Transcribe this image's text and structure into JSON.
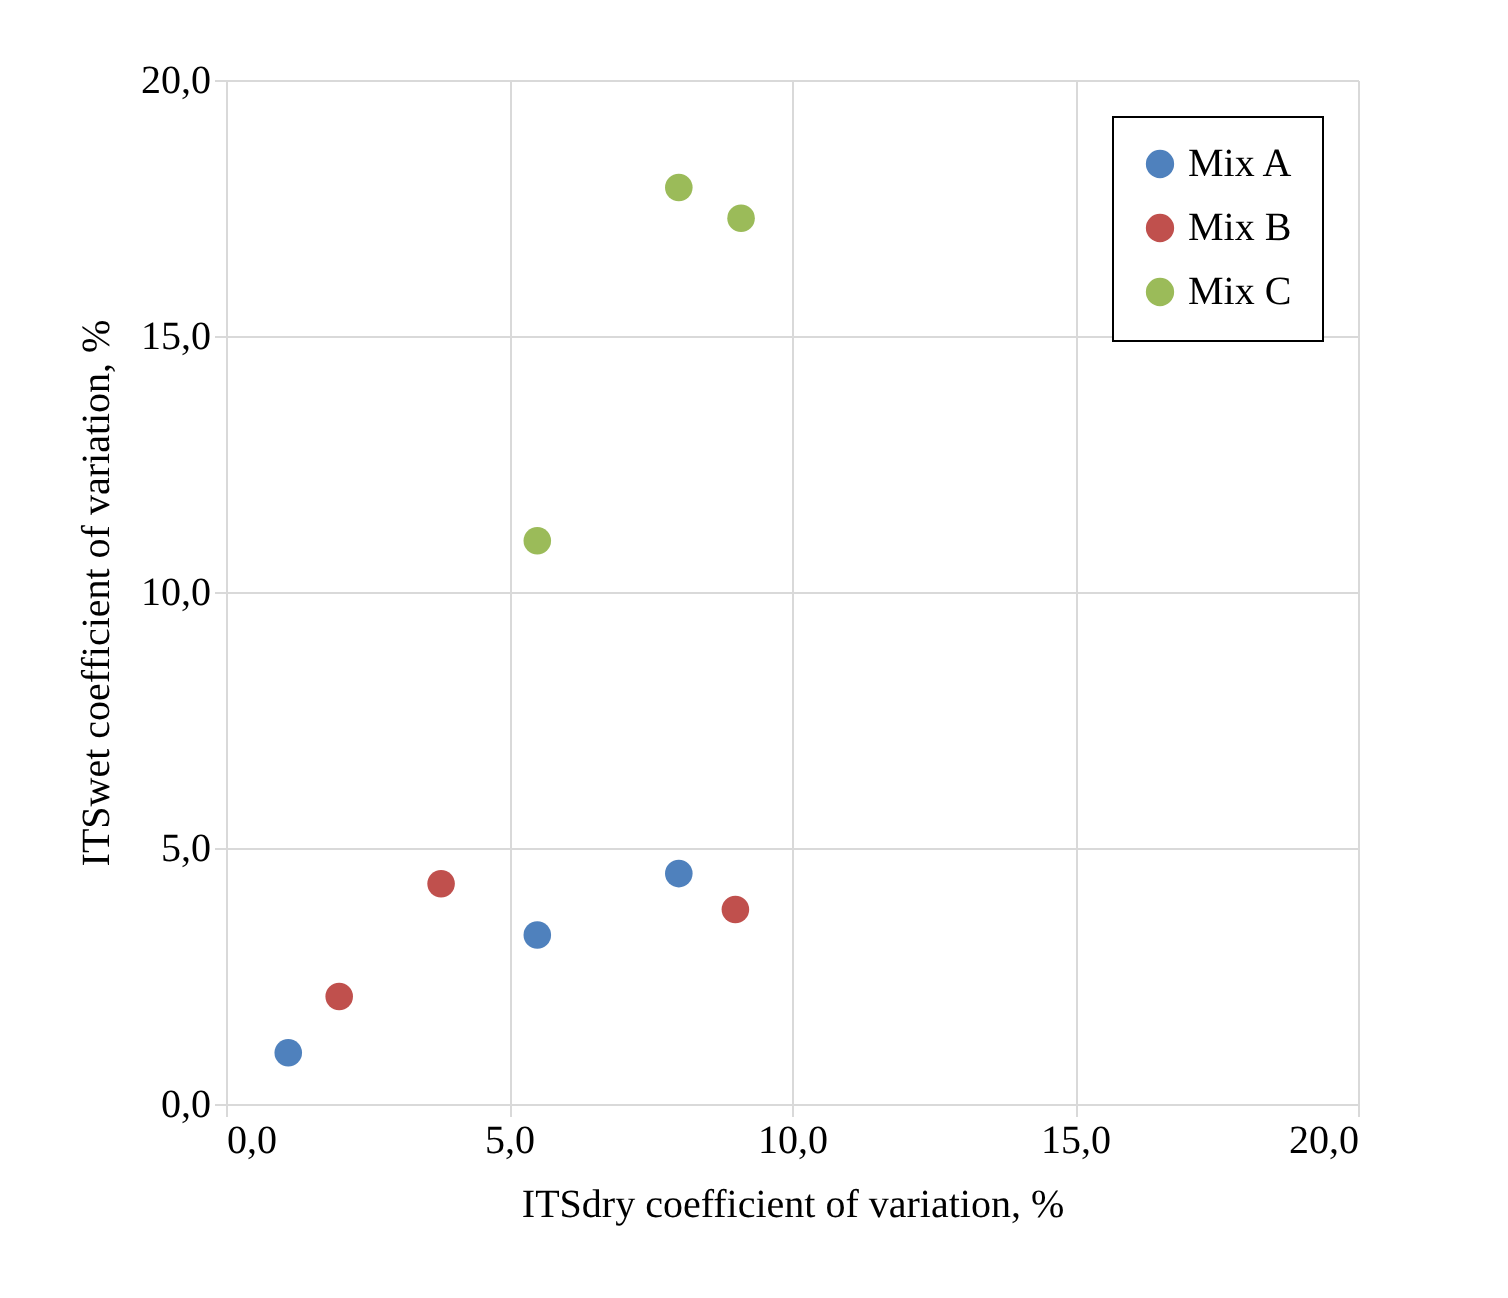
{
  "chart_data": {
    "type": "scatter",
    "xlabel": "ITSdry coefficient of variation, %",
    "ylabel": "ITSwet coefficient of variation, %",
    "series": [
      {
        "name": "Mix A",
        "color": "#4f81bd",
        "x": [
          1.1,
          5.5,
          8.0
        ],
        "values": [
          1.0,
          3.3,
          4.5
        ]
      },
      {
        "name": "Mix B",
        "color": "#c0504d",
        "x": [
          2.0,
          3.8,
          9.0
        ],
        "values": [
          2.1,
          4.3,
          3.8
        ]
      },
      {
        "name": "Mix C",
        "color": "#9bbb59",
        "x": [
          5.5,
          8.0,
          9.1
        ],
        "values": [
          11.0,
          17.9,
          17.3
        ]
      }
    ],
    "xlim": [
      0,
      20
    ],
    "ylim": [
      0,
      20
    ],
    "xticks": [
      {
        "value": 0,
        "label": "0,0"
      },
      {
        "value": 5,
        "label": "5,0"
      },
      {
        "value": 10,
        "label": "10,0"
      },
      {
        "value": 15,
        "label": "15,0"
      },
      {
        "value": 20,
        "label": "20,0"
      }
    ],
    "yticks": [
      {
        "value": 0,
        "label": "0,0"
      },
      {
        "value": 5,
        "label": "5,0"
      },
      {
        "value": 10,
        "label": "10,0"
      },
      {
        "value": 15,
        "label": "15,0"
      },
      {
        "value": 20,
        "label": "20,0"
      }
    ],
    "grid": true,
    "legend": "top right",
    "marker": "circle"
  }
}
